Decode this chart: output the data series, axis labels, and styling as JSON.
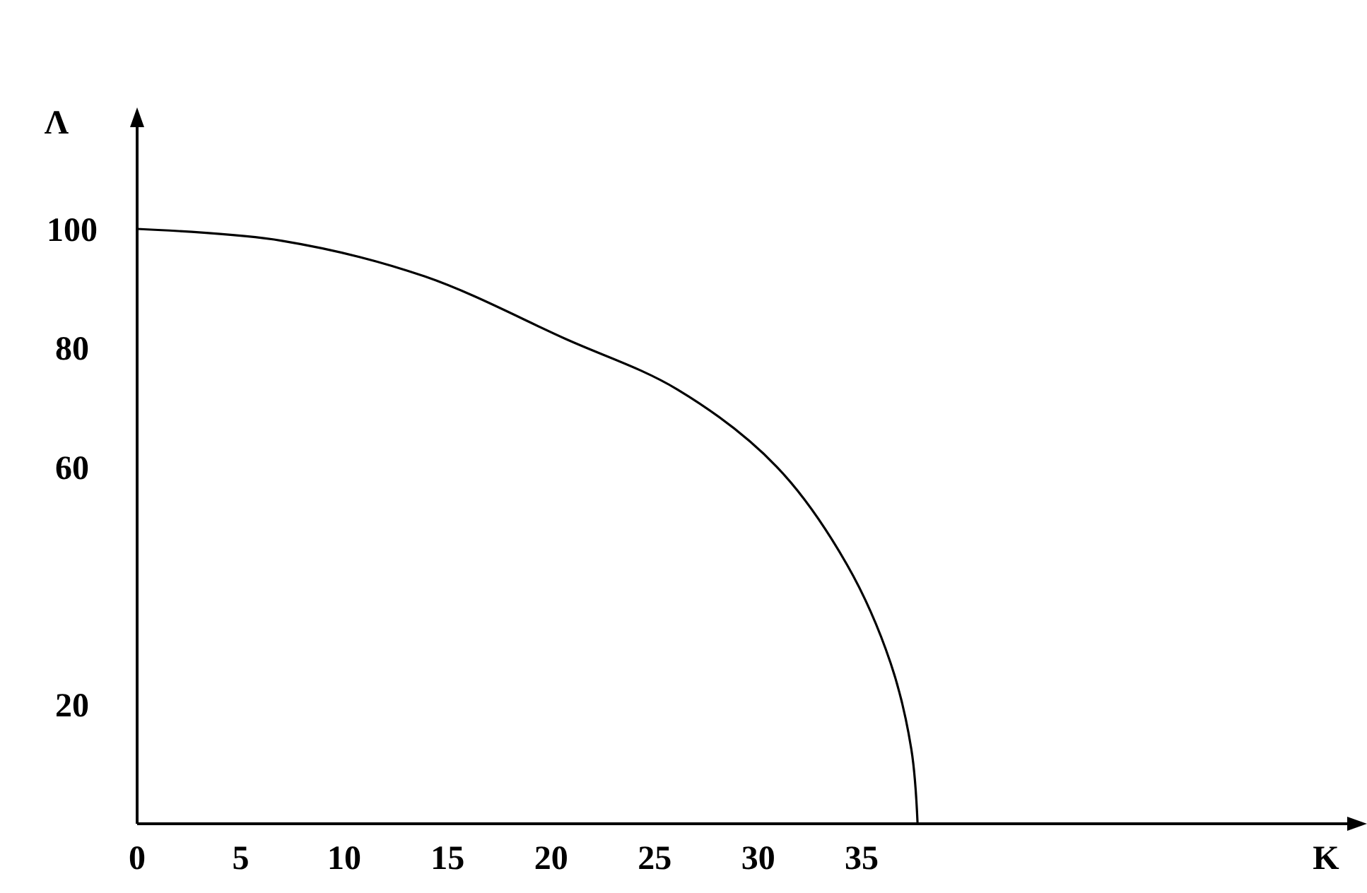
{
  "chart_data": {
    "type": "line",
    "xlabel": "K",
    "ylabel": "Λ",
    "x": [
      0,
      7,
      13.9,
      20.7,
      26.1,
      30.9,
      34.3,
      36.4,
      37.4,
      37.7
    ],
    "series": [
      {
        "color": "#000000",
        "values": [
          100,
          98,
          92,
          81.5,
          73,
          60,
          43.5,
          27,
          12.5,
          0
        ]
      }
    ],
    "xlim": [
      0,
      59
    ],
    "ylim": [
      0,
      119
    ],
    "xticks": [
      0,
      5,
      10,
      15,
      20,
      25,
      30,
      35
    ],
    "yticks": [
      20,
      60,
      80,
      100
    ],
    "grid": false,
    "marker": "none",
    "line_style": "solid"
  }
}
